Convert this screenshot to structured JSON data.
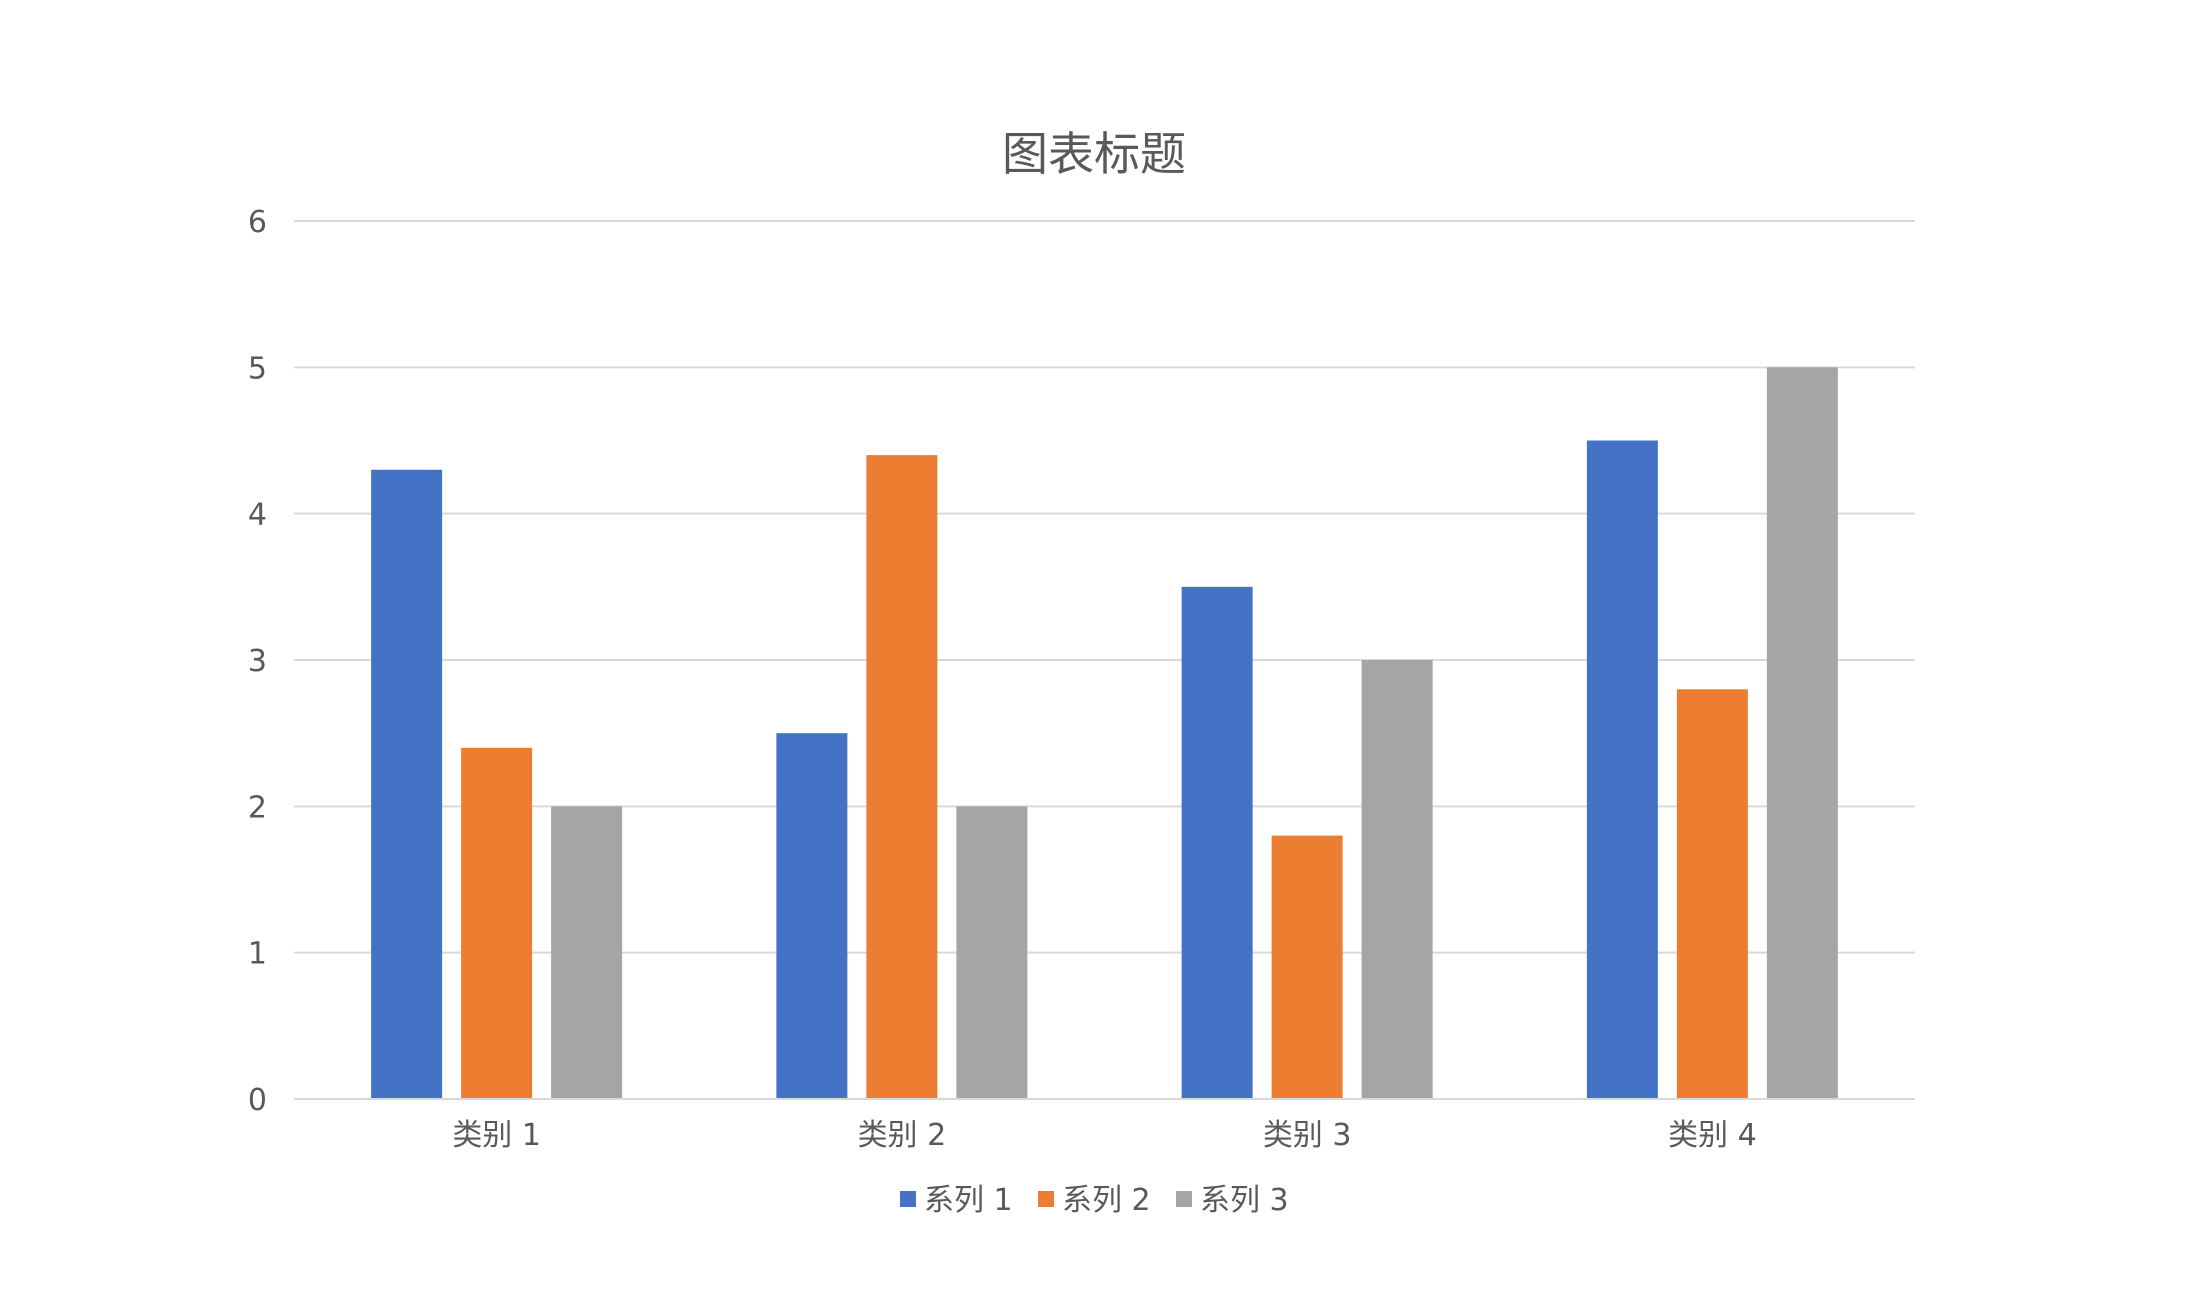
{
  "chart_data": {
    "type": "bar",
    "title": "图表标题",
    "xlabel": "",
    "ylabel": "",
    "categories": [
      "类别 1",
      "类别 2",
      "类别 3",
      "类别 4"
    ],
    "series": [
      {
        "name": "系列 1",
        "color": "#4472C4",
        "values": [
          4.3,
          2.5,
          3.5,
          4.5
        ]
      },
      {
        "name": "系列 2",
        "color": "#ED7D31",
        "values": [
          2.4,
          4.4,
          1.8,
          2.8
        ]
      },
      {
        "name": "系列 3",
        "color": "#A5A5A5",
        "values": [
          2,
          2,
          3,
          5
        ]
      }
    ],
    "ylim": [
      0,
      6
    ],
    "yticks": [
      "0",
      "1",
      "2",
      "3",
      "4",
      "5",
      "6"
    ],
    "grid": true,
    "legend_position": "bottom"
  }
}
